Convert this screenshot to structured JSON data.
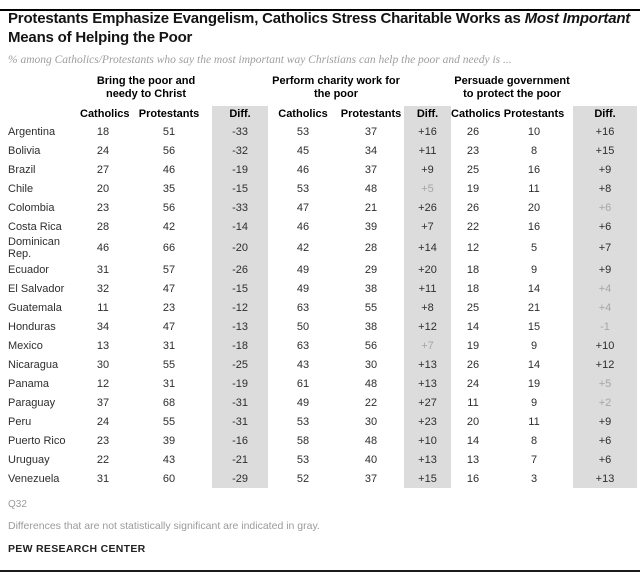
{
  "header": {
    "title_runs": [
      "Protestants Emphasize Evangelism, Catholics Stress Charitable Works as ",
      "Most Important",
      " Means of Helping the Poor"
    ],
    "subtitle": "% among Catholics/Protestants who say the most important way Christians can help the poor  and needy is ..."
  },
  "chart_data": {
    "type": "table",
    "title": "Protestants Emphasize Evangelism, Catholics Stress Charitable Works as Most Important Means of Helping the Poor",
    "subtitle": "% among Catholics/Protestants who say the most important way Christians can help the poor and needy is ...",
    "groups": [
      {
        "label": "Bring the poor and needy to Christ"
      },
      {
        "label": "Perform charity work for the poor"
      },
      {
        "label": "Persuade government to protect the poor"
      }
    ],
    "col_headers": [
      "Catholics",
      "Protestants",
      "Diff."
    ],
    "value_column_order": [
      "g1_catholics",
      "g1_protestants",
      "g1_diff",
      "g2_catholics",
      "g2_protestants",
      "g2_diff",
      "g3_catholics",
      "g3_protestants",
      "g3_diff"
    ],
    "rows": [
      {
        "country": "Argentina",
        "values": [
          "18",
          "51",
          "-33",
          "53",
          "37",
          "+16",
          "26",
          "10",
          "+16"
        ],
        "gray_indices": []
      },
      {
        "country": "Bolivia",
        "values": [
          "24",
          "56",
          "-32",
          "45",
          "34",
          "+11",
          "23",
          "8",
          "+15"
        ],
        "gray_indices": []
      },
      {
        "country": "Brazil",
        "values": [
          "27",
          "46",
          "-19",
          "46",
          "37",
          "+9",
          "25",
          "16",
          "+9"
        ],
        "gray_indices": []
      },
      {
        "country": "Chile",
        "values": [
          "20",
          "35",
          "-15",
          "53",
          "48",
          "+5",
          "19",
          "11",
          "+8"
        ],
        "gray_indices": [
          5
        ]
      },
      {
        "country": "Colombia",
        "values": [
          "23",
          "56",
          "-33",
          "47",
          "21",
          "+26",
          "26",
          "20",
          "+6"
        ],
        "gray_indices": [
          8
        ]
      },
      {
        "country": "Costa Rica",
        "values": [
          "28",
          "42",
          "-14",
          "46",
          "39",
          "+7",
          "22",
          "16",
          "+6"
        ],
        "gray_indices": []
      },
      {
        "country": "Dominican Rep.",
        "values": [
          "46",
          "66",
          "-20",
          "42",
          "28",
          "+14",
          "12",
          "5",
          "+7"
        ],
        "gray_indices": []
      },
      {
        "country": "Ecuador",
        "values": [
          "31",
          "57",
          "-26",
          "49",
          "29",
          "+20",
          "18",
          "9",
          "+9"
        ],
        "gray_indices": []
      },
      {
        "country": "El Salvador",
        "values": [
          "32",
          "47",
          "-15",
          "49",
          "38",
          "+11",
          "18",
          "14",
          "+4"
        ],
        "gray_indices": [
          8
        ]
      },
      {
        "country": "Guatemala",
        "values": [
          "11",
          "23",
          "-12",
          "63",
          "55",
          "+8",
          "25",
          "21",
          "+4"
        ],
        "gray_indices": [
          8
        ]
      },
      {
        "country": "Honduras",
        "values": [
          "34",
          "47",
          "-13",
          "50",
          "38",
          "+12",
          "14",
          "15",
          "-1"
        ],
        "gray_indices": [
          8
        ]
      },
      {
        "country": "Mexico",
        "values": [
          "13",
          "31",
          "-18",
          "63",
          "56",
          "+7",
          "19",
          "9",
          "+10"
        ],
        "gray_indices": [
          5
        ]
      },
      {
        "country": "Nicaragua",
        "values": [
          "30",
          "55",
          "-25",
          "43",
          "30",
          "+13",
          "26",
          "14",
          "+12"
        ],
        "gray_indices": []
      },
      {
        "country": "Panama",
        "values": [
          "12",
          "31",
          "-19",
          "61",
          "48",
          "+13",
          "24",
          "19",
          "+5"
        ],
        "gray_indices": [
          8
        ]
      },
      {
        "country": "Paraguay",
        "values": [
          "37",
          "68",
          "-31",
          "49",
          "22",
          "+27",
          "11",
          "9",
          "+2"
        ],
        "gray_indices": [
          8
        ]
      },
      {
        "country": "Peru",
        "values": [
          "24",
          "55",
          "-31",
          "53",
          "30",
          "+23",
          "20",
          "11",
          "+9"
        ],
        "gray_indices": []
      },
      {
        "country": "Puerto Rico",
        "values": [
          "23",
          "39",
          "-16",
          "58",
          "48",
          "+10",
          "14",
          "8",
          "+6"
        ],
        "gray_indices": []
      },
      {
        "country": "Uruguay",
        "values": [
          "22",
          "43",
          "-21",
          "53",
          "40",
          "+13",
          "13",
          "7",
          "+6"
        ],
        "gray_indices": []
      },
      {
        "country": "Venezuela",
        "values": [
          "31",
          "60",
          "-29",
          "52",
          "37",
          "+15",
          "16",
          "3",
          "+13"
        ],
        "gray_indices": []
      }
    ]
  },
  "colors": {
    "diff_band_background": "#dcdcdc",
    "not_significant_text": "#a6a6a6",
    "body_text": "#2e2e2e",
    "subtitle_text": "#9e9e9e",
    "rule": "#000000"
  },
  "footer": {
    "question": "Q32",
    "note": "Differences that are not statistically significant are indicated in gray.",
    "source": "PEW RESEARCH CENTER"
  }
}
